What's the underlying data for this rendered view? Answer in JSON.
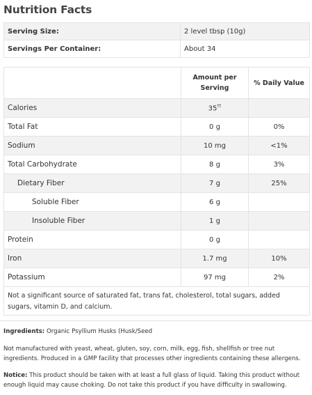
{
  "title": "Nutrition Facts",
  "serving": [
    {
      "label": "Serving Size:",
      "value": "2 level tbsp (10g)"
    },
    {
      "label": "Servings Per Container:",
      "value": "About 34"
    }
  ],
  "headers": {
    "amount_line1": "Amount per",
    "amount_line2": "Serving",
    "dv": "% Daily Value"
  },
  "nutrients": [
    {
      "name": "Calories",
      "amount": "35",
      "amount_sup": "††",
      "dv": ""
    },
    {
      "name": "Total Fat",
      "amount": "0 g",
      "dv": "0%"
    },
    {
      "name": "Sodium",
      "amount": "10 mg",
      "dv": "<1%"
    },
    {
      "name": "Total Carbohydrate",
      "amount": "8 g",
      "dv": "3%"
    },
    {
      "name": "Dietary Fiber",
      "amount": "7 g",
      "dv": "25%"
    },
    {
      "name": "Soluble Fiber",
      "amount": "6 g",
      "dv": ""
    },
    {
      "name": "Insoluble Fiber",
      "amount": "1 g",
      "dv": ""
    },
    {
      "name": "Protein",
      "amount": "0 g",
      "dv": ""
    },
    {
      "name": "Iron",
      "amount": "1.7 mg",
      "dv": "10%"
    },
    {
      "name": "Potassium",
      "amount": "97 mg",
      "dv": "2%"
    }
  ],
  "footnote": "Not a significant source of saturated fat, trans fat, cholesterol, total sugars, added sugars, vitamin D, and calcium.",
  "ingredients": {
    "label": "Ingredients:",
    "text": " Organic Psyllium Husks (Husk/Seed"
  },
  "allergen_note": "Not manufactured with yeast, wheat, gluten, soy, corn, milk, egg, fish, shellfish or tree nut ingredients. Produced in a GMP facility that processes other ingredients containing these allergens.",
  "notice": {
    "label": "Notice:",
    "text": " This product should be taken with at least a full glass of liquid. Taking this product without enough liquid may cause choking. Do not take this product if you have difficulty in swallowing."
  }
}
